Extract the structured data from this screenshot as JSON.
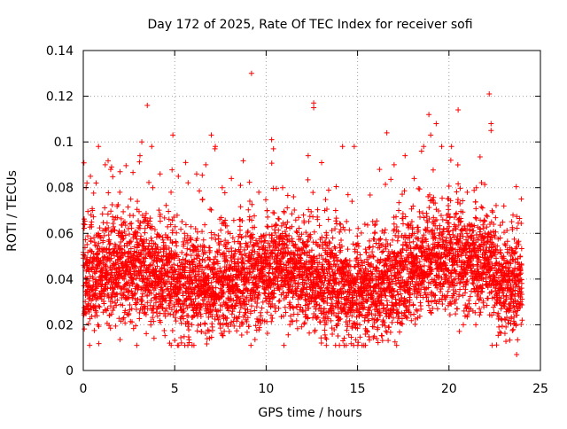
{
  "chart_data": {
    "type": "scatter",
    "title": "Day 172 of 2025, Rate Of TEC Index for receiver sofi",
    "xlabel": "GPS time / hours",
    "ylabel": "ROTI / TECUs",
    "xlim": [
      0,
      25
    ],
    "ylim": [
      0,
      0.14
    ],
    "x_ticks": [
      0,
      5,
      10,
      15,
      20,
      25
    ],
    "x_tick_labels": [
      "0",
      "5",
      "10",
      "15",
      "20",
      "25"
    ],
    "y_ticks": [
      0,
      0.02,
      0.04,
      0.06,
      0.08,
      0.1,
      0.12,
      0.14
    ],
    "y_tick_labels": [
      "0",
      "0.02",
      "0.04",
      "0.06",
      "0.08",
      "0.1",
      "0.12",
      "0.14"
    ],
    "grid": true,
    "marker": "+",
    "color": "#ff0000",
    "series": [
      {
        "name": "ROTI",
        "x_range": [
          0,
          24
        ],
        "typical_center": 0.04,
        "typical_band": [
          0.015,
          0.08
        ],
        "points": [
          {
            "x": 0.2,
            "y": 0.082
          },
          {
            "x": 0.5,
            "y": 0.07
          },
          {
            "x": 0.7,
            "y": 0.082
          },
          {
            "x": 0.8,
            "y": 0.02
          },
          {
            "x": 1.2,
            "y": 0.09
          },
          {
            "x": 1.5,
            "y": 0.088
          },
          {
            "x": 2.0,
            "y": 0.078
          },
          {
            "x": 2.6,
            "y": 0.075
          },
          {
            "x": 3.1,
            "y": 0.094
          },
          {
            "x": 3.2,
            "y": 0.1
          },
          {
            "x": 3.5,
            "y": 0.116
          },
          {
            "x": 3.8,
            "y": 0.08
          },
          {
            "x": 4.2,
            "y": 0.086
          },
          {
            "x": 4.8,
            "y": 0.078
          },
          {
            "x": 4.9,
            "y": 0.103
          },
          {
            "x": 5.2,
            "y": 0.085
          },
          {
            "x": 5.6,
            "y": 0.091
          },
          {
            "x": 6.2,
            "y": 0.086
          },
          {
            "x": 6.7,
            "y": 0.09
          },
          {
            "x": 7.0,
            "y": 0.103
          },
          {
            "x": 7.2,
            "y": 0.097
          },
          {
            "x": 7.6,
            "y": 0.08
          },
          {
            "x": 8.1,
            "y": 0.084
          },
          {
            "x": 8.6,
            "y": 0.081
          },
          {
            "x": 9.2,
            "y": 0.13
          },
          {
            "x": 9.6,
            "y": 0.078
          },
          {
            "x": 10.3,
            "y": 0.101
          },
          {
            "x": 10.4,
            "y": 0.097
          },
          {
            "x": 10.9,
            "y": 0.08
          },
          {
            "x": 11.5,
            "y": 0.076
          },
          {
            "x": 12.3,
            "y": 0.094
          },
          {
            "x": 12.6,
            "y": 0.117
          },
          {
            "x": 12.6,
            "y": 0.115
          },
          {
            "x": 13.2,
            "y": 0.07
          },
          {
            "x": 13.8,
            "y": 0.07
          },
          {
            "x": 14.2,
            "y": 0.013
          },
          {
            "x": 14.7,
            "y": 0.074
          },
          {
            "x": 15.4,
            "y": 0.064
          },
          {
            "x": 16.2,
            "y": 0.088
          },
          {
            "x": 16.6,
            "y": 0.104
          },
          {
            "x": 17.0,
            "y": 0.09
          },
          {
            "x": 17.6,
            "y": 0.094
          },
          {
            "x": 18.1,
            "y": 0.084
          },
          {
            "x": 18.5,
            "y": 0.096
          },
          {
            "x": 18.9,
            "y": 0.112
          },
          {
            "x": 19.0,
            "y": 0.103
          },
          {
            "x": 19.3,
            "y": 0.108
          },
          {
            "x": 19.6,
            "y": 0.098
          },
          {
            "x": 20.1,
            "y": 0.092
          },
          {
            "x": 20.5,
            "y": 0.114
          },
          {
            "x": 21.0,
            "y": 0.078
          },
          {
            "x": 21.5,
            "y": 0.08
          },
          {
            "x": 22.2,
            "y": 0.121
          },
          {
            "x": 22.3,
            "y": 0.108
          },
          {
            "x": 22.3,
            "y": 0.105
          },
          {
            "x": 23.0,
            "y": 0.072
          },
          {
            "x": 23.5,
            "y": 0.068
          },
          {
            "x": 23.7,
            "y": 0.007
          },
          {
            "x": 23.9,
            "y": 0.05
          }
        ]
      }
    ]
  }
}
